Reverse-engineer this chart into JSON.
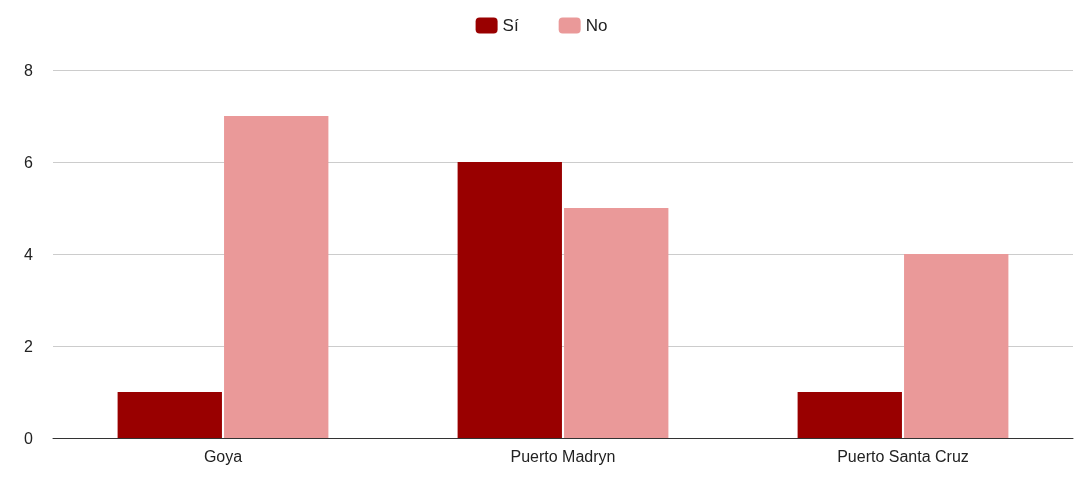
{
  "chart_data": {
    "type": "bar",
    "categories": [
      "Goya",
      "Puerto Madryn",
      "Puerto Santa Cruz"
    ],
    "series": [
      {
        "name": "Sí",
        "color": "#990000",
        "values": [
          1,
          6,
          1
        ]
      },
      {
        "name": "No",
        "color": "#ea9999",
        "values": [
          7,
          5,
          4
        ]
      }
    ],
    "ylim": [
      0,
      8
    ],
    "yticks": [
      0,
      2,
      4,
      6,
      8
    ],
    "grid": "y",
    "legend": "top"
  }
}
